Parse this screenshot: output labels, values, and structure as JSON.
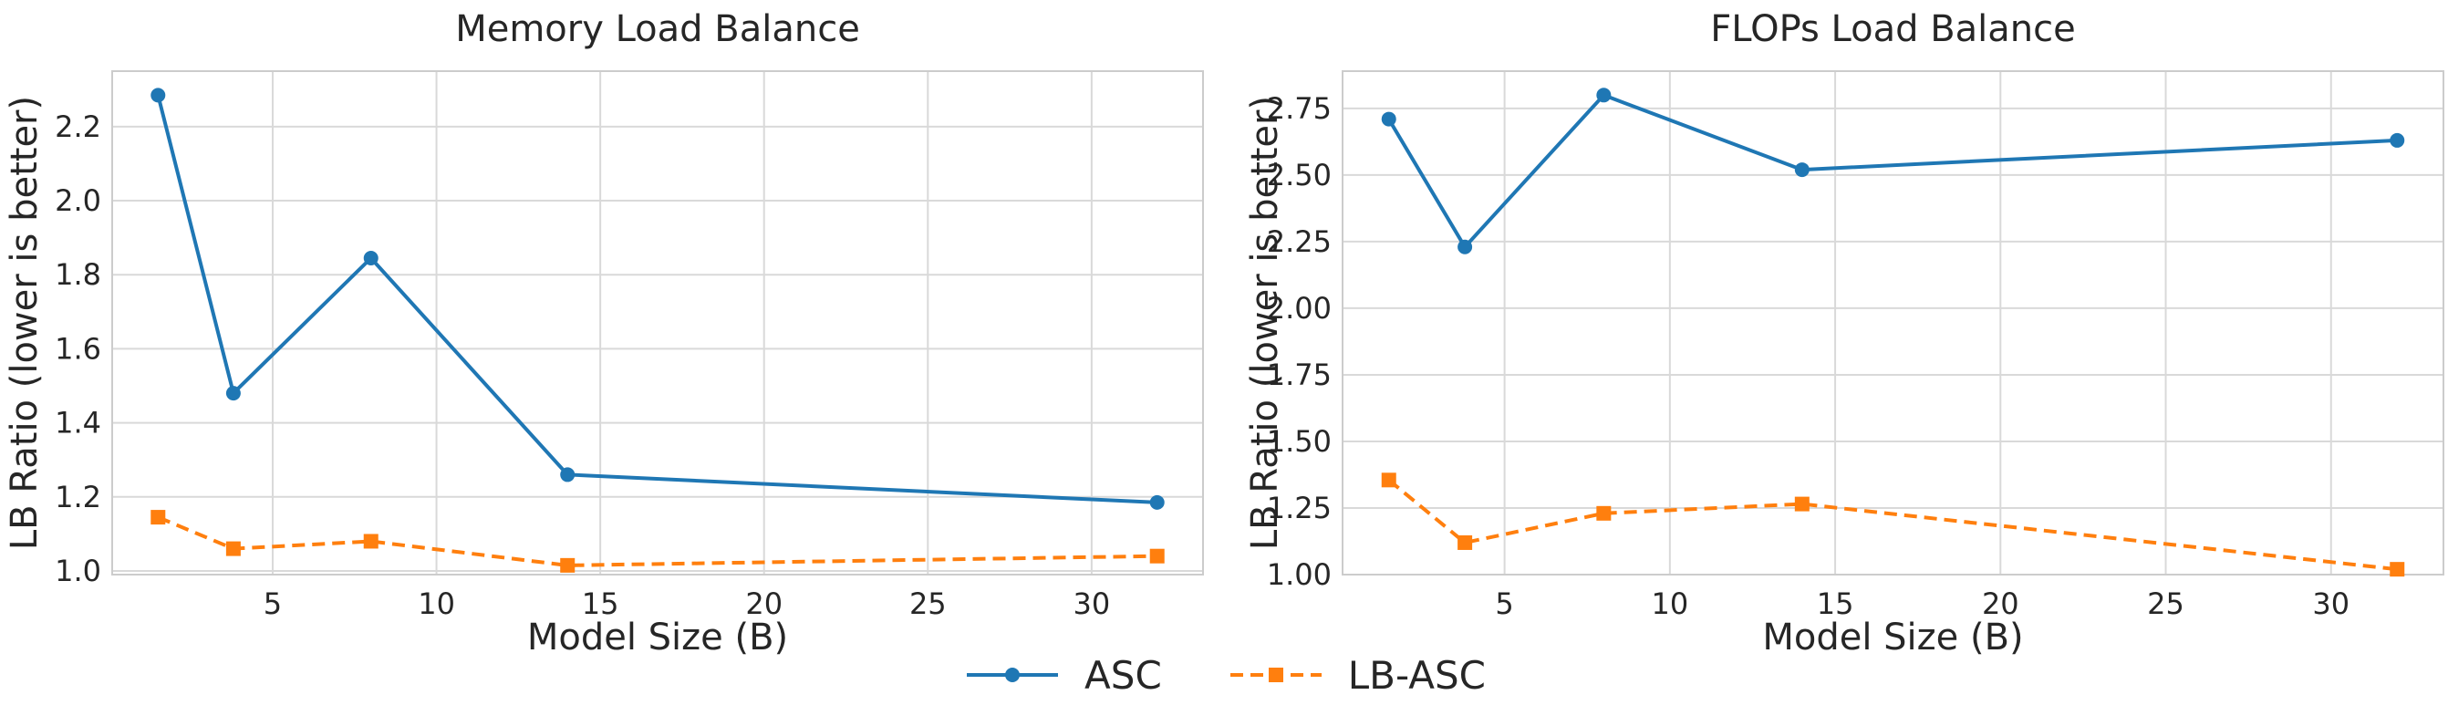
{
  "colors": {
    "asc": "#1f77b4",
    "lb_asc": "#ff7f0e",
    "grid": "#d9d9d9",
    "axis": "#cccccc",
    "text": "#262626"
  },
  "chart_data": [
    {
      "type": "line",
      "title": "Memory Load Balance",
      "xlabel": "Model Size (B)",
      "ylabel": "LB Ratio (lower is better)",
      "xlim": [
        0.1,
        33.4
      ],
      "ylim": [
        0.99,
        2.35
      ],
      "xticks": [
        5,
        10,
        15,
        20,
        25,
        30
      ],
      "xtick_labels": [
        "5",
        "10",
        "15",
        "20",
        "25",
        "30"
      ],
      "yticks": [
        1.0,
        1.2,
        1.4,
        1.6,
        1.8,
        2.0,
        2.2
      ],
      "ytick_labels": [
        "1.0",
        "1.2",
        "1.4",
        "1.6",
        "1.8",
        "2.0",
        "2.2"
      ],
      "grid": true,
      "series": [
        {
          "name": "ASC",
          "x": [
            1.5,
            3.8,
            8,
            14,
            32
          ],
          "values": [
            2.285,
            1.48,
            1.845,
            1.26,
            1.185
          ]
        },
        {
          "name": "LB-ASC",
          "x": [
            1.5,
            3.8,
            8,
            14,
            32
          ],
          "values": [
            1.145,
            1.06,
            1.08,
            1.015,
            1.04
          ]
        }
      ]
    },
    {
      "type": "line",
      "title": "FLOPs Load Balance",
      "xlabel": "Model Size (B)",
      "ylabel": "LB Ratio (lower is better)",
      "xlim": [
        0.1,
        33.4
      ],
      "ylim": [
        1.0,
        2.89
      ],
      "xticks": [
        5,
        10,
        15,
        20,
        25,
        30
      ],
      "xtick_labels": [
        "5",
        "10",
        "15",
        "20",
        "25",
        "30"
      ],
      "yticks": [
        1.0,
        1.25,
        1.5,
        1.75,
        2.0,
        2.25,
        2.5,
        2.75
      ],
      "ytick_labels": [
        "1.00",
        "1.25",
        "1.50",
        "1.75",
        "2.00",
        "2.25",
        "2.50",
        "2.75"
      ],
      "grid": true,
      "series": [
        {
          "name": "ASC",
          "x": [
            1.5,
            3.8,
            8,
            14,
            32
          ],
          "values": [
            2.71,
            2.23,
            2.8,
            2.52,
            2.63
          ]
        },
        {
          "name": "LB-ASC",
          "x": [
            1.5,
            3.8,
            8,
            14,
            32
          ],
          "values": [
            1.355,
            1.12,
            1.23,
            1.265,
            1.02
          ]
        }
      ]
    }
  ],
  "legend": [
    {
      "label": "ASC",
      "marker": "circle",
      "line": "solid"
    },
    {
      "label": "LB-ASC",
      "marker": "square",
      "line": "dashed"
    }
  ]
}
